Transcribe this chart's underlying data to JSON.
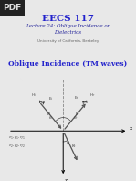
{
  "title1": "EECS 117",
  "title2": "Lecture 24: Oblique Incidence on\nDielectrics",
  "subtitle": "University of California, Berkeley",
  "section_title": "Oblique Incidence (TM waves)",
  "bg_color": "#e8e8e8",
  "title1_color": "#2222cc",
  "title2_color": "#222299",
  "subtitle_color": "#666666",
  "section_color": "#2222cc",
  "arrow_color": "#555555",
  "label_color": "#444444",
  "pdf_bg": "#222222",
  "pdf_color": "#dddddd"
}
